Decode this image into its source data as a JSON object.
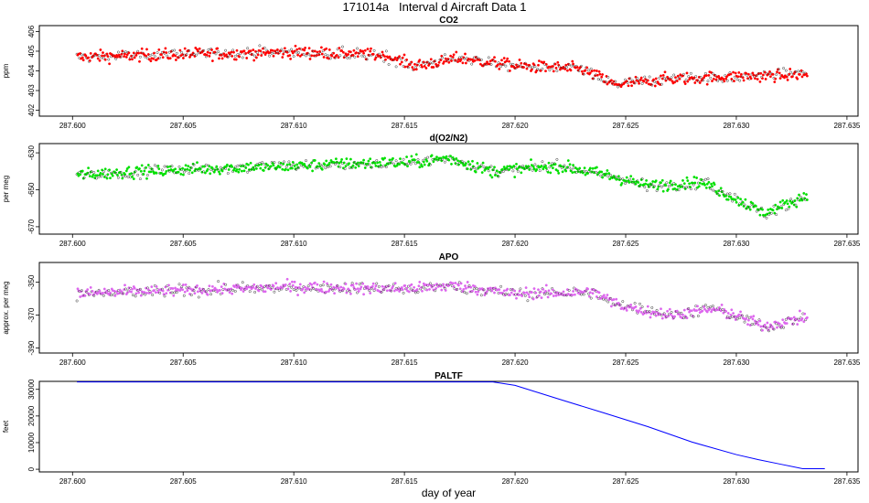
{
  "page": {
    "title": "171014a   Interval d Aircraft Data 1"
  },
  "colors": {
    "co2": "#ff0000",
    "o2n2": "#00e000",
    "apo": "#dd66ee",
    "paltf": "#0000ff",
    "axis": "#000000"
  },
  "chart_data": [
    {
      "type": "scatter",
      "title": "CO2",
      "ylabel": "ppm",
      "xlabel": "",
      "xlim": [
        287.5985,
        287.6355
      ],
      "ylim": [
        401.7,
        406.3
      ],
      "xticks": [
        287.6,
        287.605,
        287.61,
        287.615,
        287.62,
        287.625,
        287.63,
        287.635
      ],
      "xtick_labels": [
        "287.600",
        "287.605",
        "287.610",
        "287.615",
        "287.620",
        "287.625",
        "287.630",
        "287.635"
      ],
      "yticks": [
        402,
        403,
        404,
        405,
        406
      ],
      "ytick_labels": [
        "402",
        "403",
        "404",
        "405",
        "406"
      ],
      "series": [
        {
          "x_range": [
            287.6002,
            287.6332
          ],
          "trend": [
            [
              287.6002,
              404.7
            ],
            [
              287.605,
              404.85
            ],
            [
              287.61,
              404.95
            ],
            [
              287.614,
              404.8
            ],
            [
              287.6155,
              404.25
            ],
            [
              287.6175,
              404.65
            ],
            [
              287.62,
              404.25
            ],
            [
              287.623,
              404.1
            ],
            [
              287.6245,
              403.3
            ],
            [
              287.627,
              403.6
            ],
            [
              287.63,
              403.7
            ],
            [
              287.6332,
              403.85
            ]
          ]
        }
      ]
    },
    {
      "type": "scatter",
      "title": "d(O2/N2)",
      "ylabel": "per meg",
      "xlabel": "",
      "xlim": [
        287.5985,
        287.6355
      ],
      "ylim": [
        -674,
        -625
      ],
      "xticks": [
        287.6,
        287.605,
        287.61,
        287.615,
        287.62,
        287.625,
        287.63,
        287.635
      ],
      "xtick_labels": [
        "287.600",
        "287.605",
        "287.610",
        "287.615",
        "287.620",
        "287.625",
        "287.630",
        "287.635"
      ],
      "yticks": [
        -670,
        -650,
        -630
      ],
      "ytick_labels": [
        "-670",
        "-650",
        "-630"
      ],
      "series": [
        {
          "x_range": [
            287.6002,
            287.6332
          ],
          "trend": [
            [
              287.6002,
              -642
            ],
            [
              287.605,
              -639
            ],
            [
              287.61,
              -637
            ],
            [
              287.6155,
              -635
            ],
            [
              287.617,
              -633
            ],
            [
              287.619,
              -640
            ],
            [
              287.622,
              -637
            ],
            [
              287.6245,
              -643
            ],
            [
              287.626,
              -648
            ],
            [
              287.6285,
              -646
            ],
            [
              287.6305,
              -658
            ],
            [
              287.6313,
              -663
            ],
            [
              287.6332,
              -653
            ]
          ]
        }
      ]
    },
    {
      "type": "scatter",
      "title": "APO",
      "ylabel": "approx. per meg",
      "xlabel": "",
      "xlim": [
        287.5985,
        287.6355
      ],
      "ylim": [
        -393,
        -338
      ],
      "xticks": [
        287.6,
        287.605,
        287.61,
        287.615,
        287.62,
        287.625,
        287.63,
        287.635
      ],
      "xtick_labels": [
        "287.600",
        "287.605",
        "287.610",
        "287.615",
        "287.620",
        "287.625",
        "287.630",
        "287.635"
      ],
      "yticks": [
        -390,
        -370,
        -350
      ],
      "ytick_labels": [
        "-390",
        "-370",
        "-350"
      ],
      "series": [
        {
          "x_range": [
            287.6002,
            287.6332
          ],
          "trend": [
            [
              287.6002,
              -357
            ],
            [
              287.605,
              -355
            ],
            [
              287.61,
              -353
            ],
            [
              287.6155,
              -354
            ],
            [
              287.617,
              -352
            ],
            [
              287.62,
              -357
            ],
            [
              287.6235,
              -356
            ],
            [
              287.6245,
              -363
            ],
            [
              287.627,
              -370
            ],
            [
              287.629,
              -366
            ],
            [
              287.6305,
              -373
            ],
            [
              287.6313,
              -377
            ],
            [
              287.6332,
              -371
            ]
          ]
        }
      ]
    },
    {
      "type": "line",
      "title": "PALTF",
      "ylabel": "feet",
      "xlabel": "day of year",
      "xlim": [
        287.5985,
        287.6355
      ],
      "ylim": [
        -1000,
        33000
      ],
      "xticks": [
        287.6,
        287.605,
        287.61,
        287.615,
        287.62,
        287.625,
        287.63,
        287.635
      ],
      "xtick_labels": [
        "287.600",
        "287.605",
        "287.610",
        "287.615",
        "287.620",
        "287.625",
        "287.630",
        "287.635"
      ],
      "yticks": [
        0,
        10000,
        20000,
        30000
      ],
      "ytick_labels": [
        "0",
        "10000",
        "20000",
        "30000"
      ],
      "series": [
        {
          "x": [
            287.6002,
            287.619,
            287.62,
            287.622,
            287.624,
            287.626,
            287.628,
            287.63,
            287.631,
            287.632,
            287.633,
            287.634
          ],
          "y": [
            32800,
            32800,
            31500,
            26300,
            21200,
            16000,
            10200,
            5500,
            3600,
            1900,
            200,
            200
          ]
        }
      ]
    }
  ]
}
